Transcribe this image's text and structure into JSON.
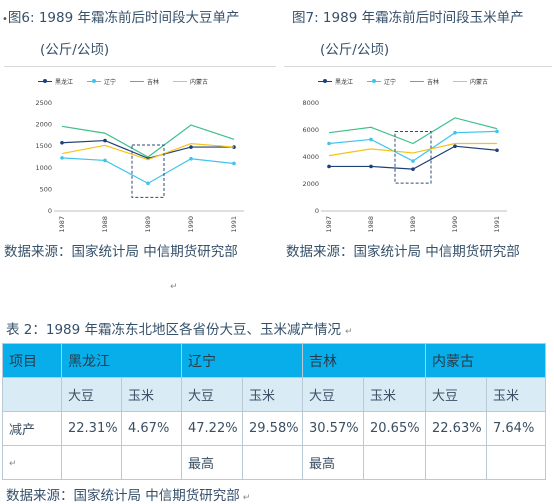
{
  "captions": {
    "left_line1": "图6: 1989  年霜冻前后时间段大豆单产",
    "left_line2": "(公斤/公顷)",
    "right_line1": "图7: 1989  年霜冻前后时间段玉米单产",
    "right_line2": "(公斤/公顷)"
  },
  "source_label": "数据来源：国家统计局  中信期货研究部",
  "table_title": "表 2：1989 年霜冻东北地区各省份大豆、玉米减产情况",
  "table": {
    "header": [
      "项目",
      "黑龙江",
      "辽宁",
      "吉林",
      "内蒙古"
    ],
    "subheader": [
      "大豆",
      "玉米",
      "大豆",
      "玉米",
      "大豆",
      "玉米",
      "大豆",
      "玉米"
    ],
    "reduction_label": "减产",
    "reduction": [
      "22.31%",
      "4.67%",
      "47.22%",
      "29.58%",
      "30.57%",
      "20.65%",
      "22.63%",
      "7.64%"
    ],
    "last_row": [
      "",
      "",
      "",
      "最高",
      "",
      "最高",
      "",
      "",
      ""
    ]
  },
  "legend": [
    "黑龙江",
    "辽宁",
    "吉林",
    "内蒙古"
  ],
  "colors": {
    "heilongjiang": "#1f3f7a",
    "liaoning": "#3fc4ee",
    "jilin": "#3fbf8a",
    "neimenggu": "#f2c418",
    "header_bg": "#08aeea",
    "subheader_bg": "#d9ecf6"
  },
  "chart_data": [
    {
      "type": "line",
      "x": [
        "1987",
        "1988",
        "1989",
        "1990",
        "1991"
      ],
      "ylim": [
        0,
        2500
      ],
      "yticks": [
        0,
        500,
        1000,
        1500,
        2000,
        2500
      ],
      "series": [
        {
          "name": "黑龙江",
          "values": [
            1580,
            1630,
            1220,
            1480,
            1480
          ]
        },
        {
          "name": "辽宁",
          "values": [
            1230,
            1170,
            640,
            1210,
            1100
          ]
        },
        {
          "name": "吉林",
          "values": [
            1960,
            1800,
            1250,
            1990,
            1660
          ]
        },
        {
          "name": "内蒙古",
          "values": [
            1330,
            1520,
            1190,
            1560,
            1480
          ]
        }
      ],
      "highlight": "1989"
    },
    {
      "type": "line",
      "x": [
        "1987",
        "1988",
        "1989",
        "1990",
        "1991"
      ],
      "ylim": [
        0,
        8000
      ],
      "yticks": [
        0,
        2000,
        4000,
        6000,
        8000
      ],
      "series": [
        {
          "name": "黑龙江",
          "values": [
            3300,
            3300,
            3100,
            4800,
            4500
          ]
        },
        {
          "name": "辽宁",
          "values": [
            5000,
            5300,
            3700,
            5800,
            5900
          ]
        },
        {
          "name": "吉林",
          "values": [
            5800,
            6200,
            5000,
            6900,
            6100
          ]
        },
        {
          "name": "内蒙古",
          "values": [
            4100,
            4600,
            4300,
            5000,
            5000
          ]
        }
      ],
      "highlight": "1989"
    }
  ]
}
